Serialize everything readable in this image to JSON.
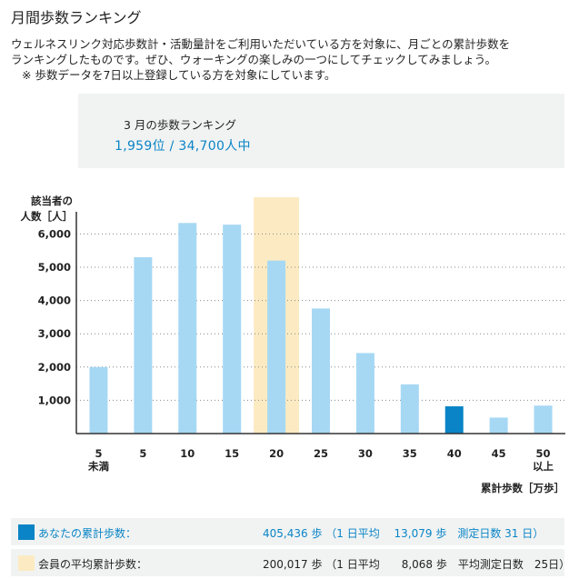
{
  "page_title": "月間歩数ランキング",
  "description": {
    "line1": "ウェルネスリンク対応歩数計・活動量計をご利用いただいている方を対象に、月ごとの累計歩数を",
    "line2": "ランキングしたものです。ぜひ、ウォーキングの楽しみの一つにしてチェックしてみましょう。",
    "note": "※ 歩数データを7日以上登録している方を対象にしています。"
  },
  "summary": {
    "month_label": "3 月の歩数ランキング",
    "rank_text": "1,959位 / 34,700人中"
  },
  "colors": {
    "bar": "#a6d8f4",
    "highlight_bar": "#0a84c6",
    "average_band": "#fcebc2",
    "axis": "#333333",
    "grid": "#888888"
  },
  "chart_data": {
    "type": "bar",
    "ylabel_line1": "該当者の",
    "ylabel_line2": "人数［人］",
    "xlabel": "累計歩数［万歩］",
    "ylim": [
      0,
      7000
    ],
    "yticks": [
      1000,
      2000,
      3000,
      4000,
      5000,
      6000
    ],
    "ytick_labels": [
      "1,000",
      "2,000",
      "3,000",
      "4,000",
      "5,000",
      "6,000"
    ],
    "categories": [
      [
        "5",
        "未満"
      ],
      [
        "5"
      ],
      [
        "10"
      ],
      [
        "15"
      ],
      [
        "20"
      ],
      [
        "25"
      ],
      [
        "30"
      ],
      [
        "35"
      ],
      [
        "40"
      ],
      [
        "45"
      ],
      [
        "50",
        "以上"
      ]
    ],
    "values": [
      2000,
      5300,
      6330,
      6280,
      5200,
      3760,
      2420,
      1480,
      820,
      480,
      840
    ],
    "highlight_index": 8,
    "average_band_index": 4
  },
  "legend": {
    "you": {
      "label": "あなたの累計歩数：",
      "value": "405,436 歩 （1 日平均　 13,079 歩　測定日数 31 日）"
    },
    "average": {
      "label": "会員の平均累計歩数：",
      "value": "200,017 歩 （1 日平均　　8,068 歩　平均測定日数　25日）"
    }
  }
}
